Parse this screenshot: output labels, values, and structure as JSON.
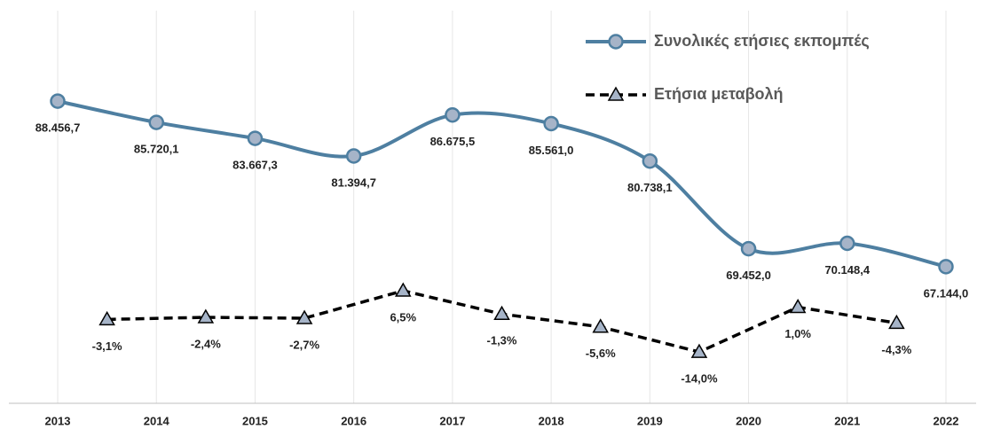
{
  "chart_data": {
    "type": "line",
    "xlim": [
      2012.5,
      2022.5
    ],
    "xticks": [
      2013,
      2014,
      2015,
      2016,
      2017,
      2018,
      2019,
      2020,
      2021,
      2022
    ],
    "ylim": [
      50000,
      100000
    ],
    "y2lim": [
      -30,
      100
    ],
    "grid": true,
    "legend": "top-right",
    "series": [
      {
        "name": "Συνολικές ετήσιες εκπομπές",
        "color": "#4e7fa1",
        "marker": "circle",
        "smooth": true,
        "x": [
          2013,
          2014,
          2015,
          2016,
          2017,
          2018,
          2019,
          2020,
          2021,
          2022
        ],
        "values": [
          88456.7,
          85720.1,
          83667.3,
          81394.7,
          86675.5,
          85561.0,
          80738.1,
          69452.0,
          70148.4,
          67144.0
        ],
        "value_labels": [
          "88.456,7",
          "85.720,1",
          "83.667,3",
          "81.394,7",
          "86.675,5",
          "85.561,0",
          "80.738,1",
          "69.452,0",
          "70.148,4",
          "67.144,0"
        ]
      },
      {
        "name": "Ετήσια μεταβολή",
        "color": "#000000",
        "marker": "triangle",
        "dashed": true,
        "axis": "y2",
        "x": [
          2013.5,
          2014.5,
          2015.5,
          2016.5,
          2017.5,
          2018.5,
          2019.5,
          2020.5,
          2021.5
        ],
        "values": [
          -3.1,
          -2.4,
          -2.7,
          6.5,
          -1.3,
          -5.6,
          -14.0,
          1.0,
          -4.3
        ],
        "value_labels": [
          "-3,1%",
          "-2,4%",
          "-2,7%",
          "6,5%",
          "-1,3%",
          "-5,6%",
          "-14,0%",
          "1,0%",
          "-4,3%"
        ]
      }
    ]
  }
}
